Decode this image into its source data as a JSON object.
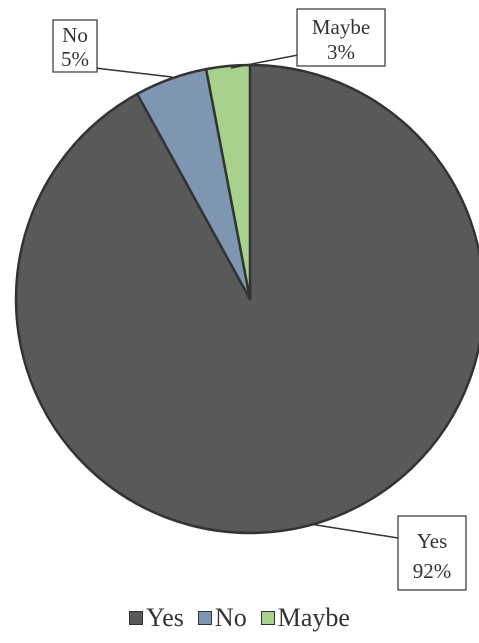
{
  "chart_data": {
    "type": "pie",
    "title": "",
    "categories": [
      "Yes",
      "No",
      "Maybe"
    ],
    "values": [
      92,
      5,
      3
    ],
    "data_labels": [
      {
        "name": "Yes",
        "percent": "92%"
      },
      {
        "name": "No",
        "percent": "5%"
      },
      {
        "name": "Maybe",
        "percent": "3%"
      }
    ],
    "colors": [
      "#595959",
      "#7f96b2",
      "#a9d18e"
    ],
    "edge_color": "#333333",
    "legend": {
      "position": "bottom",
      "entries": [
        "Yes",
        "No",
        "Maybe"
      ]
    }
  }
}
